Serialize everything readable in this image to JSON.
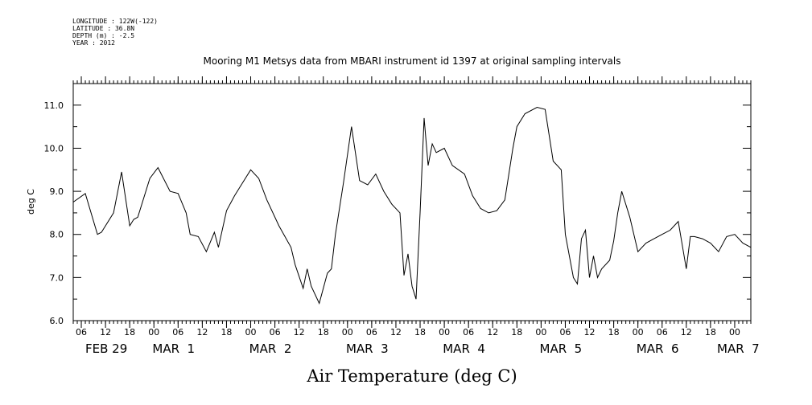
{
  "header": {
    "meta_lines": [
      "LONGITUDE : 122W(-122)",
      "LATITUDE : 36.8N",
      "DEPTH (m) : -2.5",
      "YEAR : 2012"
    ],
    "title": "Mooring M1 Metsys data from MBARI instrument id 1397 at original sampling intervals"
  },
  "chart_data": {
    "type": "line",
    "title": "Mooring M1 Metsys data from MBARI instrument id 1397 at original sampling intervals",
    "xlabel": "",
    "ylabel": "deg C",
    "caption": "Air Temperature (deg C)",
    "x_unit": "hours (2012-02-29 04:00 to 2012-03-07 04:00)",
    "xlim": [
      "2012-02-29 04:00",
      "2012-03-07 04:00"
    ],
    "ylim": [
      6.0,
      11.5
    ],
    "y_ticks": [
      "6.0",
      "7.0",
      "8.0",
      "9.0",
      "10.0",
      "11.0"
    ],
    "x_hour_ticks": [
      "06",
      "12",
      "18",
      "00",
      "06",
      "12",
      "18",
      "00",
      "06",
      "12",
      "18",
      "00",
      "06",
      "12",
      "18",
      "00",
      "06",
      "12",
      "18",
      "00",
      "06",
      "12",
      "18",
      "00",
      "06",
      "12",
      "18",
      "00",
      "06",
      "12",
      "18",
      "00",
      "06",
      "12",
      "18",
      "00",
      "06",
      "12",
      "18",
      "00"
    ],
    "date_labels": [
      "FEB 29",
      "MAR  1",
      "MAR  2",
      "MAR  3",
      "MAR  4",
      "MAR  5",
      "MAR  6",
      "MAR  7"
    ],
    "grid": false,
    "series": [
      {
        "x": [
          "2012-02-29 04:00",
          "2012-02-29 07:00",
          "2012-02-29 10:00",
          "2012-02-29 11:00",
          "2012-02-29 14:00",
          "2012-02-29 16:00",
          "2012-02-29 18:00",
          "2012-02-29 19:00",
          "2012-02-29 20:00",
          "2012-02-29 23:00",
          "2012-03-01 01:00",
          "2012-03-01 04:00",
          "2012-03-01 06:00",
          "2012-03-01 08:00",
          "2012-03-01 09:00",
          "2012-03-01 11:00",
          "2012-03-01 13:00",
          "2012-03-01 15:00",
          "2012-03-01 16:00",
          "2012-03-01 18:00",
          "2012-03-01 20:00",
          "2012-03-01 22:00",
          "2012-03-02 00:00",
          "2012-03-02 02:00",
          "2012-03-02 04:00",
          "2012-03-02 07:00",
          "2012-03-02 10:00",
          "2012-03-02 11:00",
          "2012-03-02 13:00",
          "2012-03-02 14:00",
          "2012-03-02 15:00",
          "2012-03-02 17:00",
          "2012-03-02 19:00",
          "2012-03-02 20:00",
          "2012-03-02 21:00",
          "2012-03-02 23:00",
          "2012-03-03 01:00",
          "2012-03-03 03:00",
          "2012-03-03 05:00",
          "2012-03-03 07:00",
          "2012-03-03 09:00",
          "2012-03-03 11:00",
          "2012-03-03 13:00",
          "2012-03-03 14:00",
          "2012-03-03 15:00",
          "2012-03-03 16:00",
          "2012-03-03 17:00",
          "2012-03-03 18:00",
          "2012-03-03 19:00",
          "2012-03-03 20:00",
          "2012-03-03 21:00",
          "2012-03-03 22:00",
          "2012-03-04 00:00",
          "2012-03-04 02:00",
          "2012-03-04 05:00",
          "2012-03-04 07:00",
          "2012-03-04 09:00",
          "2012-03-04 11:00",
          "2012-03-04 13:00",
          "2012-03-04 15:00",
          "2012-03-04 17:00",
          "2012-03-04 18:00",
          "2012-03-04 20:00",
          "2012-03-04 23:00",
          "2012-03-05 01:00",
          "2012-03-05 03:00",
          "2012-03-05 05:00",
          "2012-03-05 06:00",
          "2012-03-05 08:00",
          "2012-03-05 09:00",
          "2012-03-05 10:00",
          "2012-03-05 11:00",
          "2012-03-05 12:00",
          "2012-03-05 13:00",
          "2012-03-05 14:00",
          "2012-03-05 15:00",
          "2012-03-05 17:00",
          "2012-03-05 18:00",
          "2012-03-05 19:00",
          "2012-03-05 20:00",
          "2012-03-05 22:00",
          "2012-03-06 00:00",
          "2012-03-06 02:00",
          "2012-03-06 04:00",
          "2012-03-06 06:00",
          "2012-03-06 08:00",
          "2012-03-06 10:00",
          "2012-03-06 12:00",
          "2012-03-06 13:00",
          "2012-03-06 14:00",
          "2012-03-06 16:00",
          "2012-03-06 18:00",
          "2012-03-06 20:00",
          "2012-03-06 22:00",
          "2012-03-07 00:00",
          "2012-03-07 02:00",
          "2012-03-07 04:00"
        ],
        "y": [
          8.75,
          8.95,
          8.0,
          8.05,
          8.5,
          9.45,
          8.2,
          8.35,
          8.4,
          9.3,
          9.55,
          9.0,
          8.95,
          8.5,
          8.0,
          7.95,
          7.6,
          8.05,
          7.7,
          8.55,
          8.9,
          9.2,
          9.5,
          9.3,
          8.8,
          8.2,
          7.7,
          7.3,
          6.75,
          7.2,
          6.8,
          6.4,
          7.1,
          7.2,
          8.0,
          9.2,
          10.5,
          9.25,
          9.15,
          9.4,
          9.0,
          8.7,
          8.5,
          7.05,
          7.55,
          6.8,
          6.5,
          8.5,
          10.7,
          9.6,
          10.1,
          9.9,
          10.0,
          9.6,
          9.4,
          8.9,
          8.6,
          8.5,
          8.55,
          8.8,
          10.0,
          10.5,
          10.8,
          10.95,
          10.9,
          9.7,
          9.5,
          8.0,
          7.0,
          6.85,
          7.9,
          8.1,
          7.0,
          7.5,
          7.0,
          7.2,
          7.4,
          7.85,
          8.5,
          9.0,
          8.4,
          7.6,
          7.8,
          7.9,
          8.0,
          8.1,
          8.3,
          7.2,
          7.95,
          7.95,
          7.9,
          7.8,
          7.6,
          7.95,
          8.0,
          7.8,
          7.7
        ]
      }
    ]
  }
}
